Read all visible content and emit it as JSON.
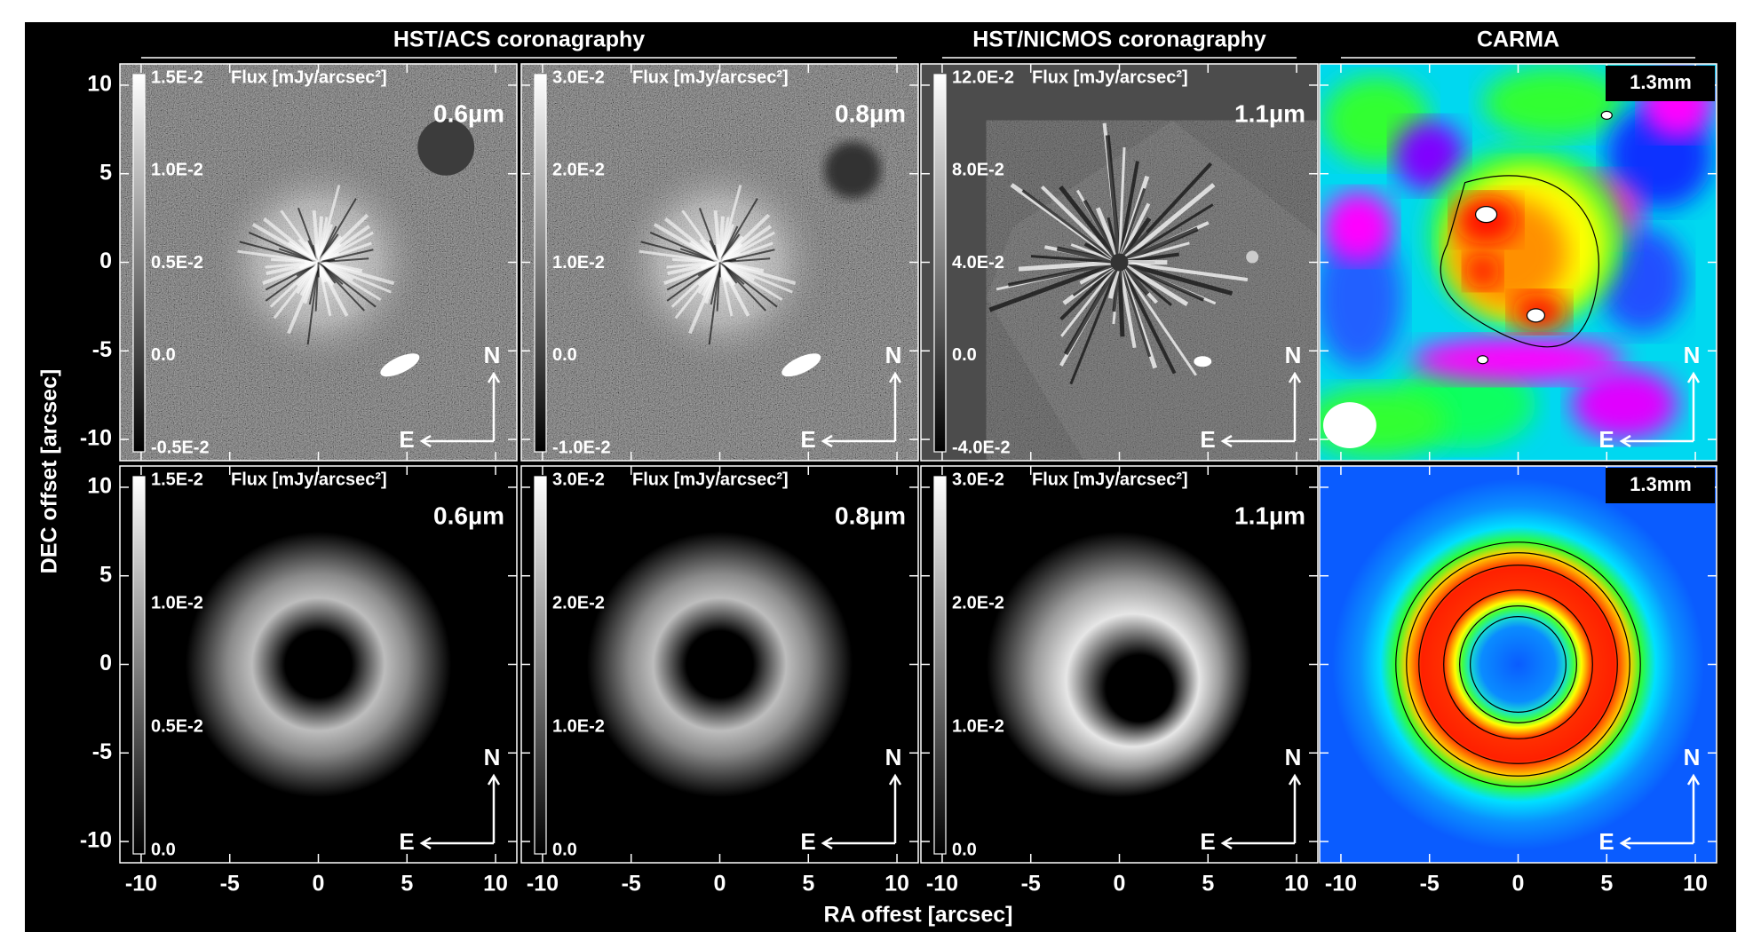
{
  "figure": {
    "headers": [
      "HST/ACS coronagraphy",
      "HST/NICMOS coronagraphy",
      "CARMA"
    ],
    "y_label": "DEC offset [arcsec]",
    "x_label": "RA offest [arcsec]",
    "xlim": [
      -11.2,
      11.2
    ],
    "ylim": [
      -11.2,
      11.2
    ],
    "ticks": [
      -10,
      -5,
      0,
      5,
      10
    ],
    "flux_unit": "Flux [mJy/arcsec²]",
    "compass": {
      "north": "N",
      "east": "E"
    },
    "panels": [
      {
        "wavelength": "0.6µm",
        "colorbar": [
          "1.5E-2",
          "1.0E-2",
          "0.5E-2",
          "0.0",
          "-0.5E-2"
        ]
      },
      {
        "wavelength": "0.8µm",
        "colorbar": [
          "3.0E-2",
          "2.0E-2",
          "1.0E-2",
          "0.0",
          "-1.0E-2"
        ]
      },
      {
        "wavelength": "1.1µm",
        "colorbar": [
          "12.0E-2",
          "8.0E-2",
          "4.0E-2",
          "0.0",
          "-4.0E-2"
        ]
      },
      {
        "wavelength": "1.3mm"
      },
      {
        "wavelength": "0.6µm",
        "colorbar": [
          "1.5E-2",
          "1.0E-2",
          "0.5E-2",
          "0.0"
        ]
      },
      {
        "wavelength": "0.8µm",
        "colorbar": [
          "3.0E-2",
          "2.0E-2",
          "1.0E-2",
          "0.0"
        ]
      },
      {
        "wavelength": "1.1µm",
        "colorbar": [
          "3.0E-2",
          "2.0E-2",
          "1.0E-2",
          "0.0"
        ]
      },
      {
        "wavelength": "1.3mm"
      }
    ]
  }
}
